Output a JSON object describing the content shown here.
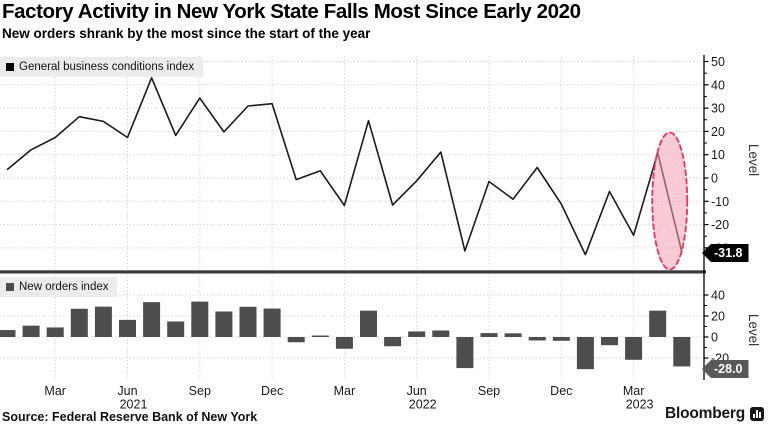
{
  "header": {
    "title": "Factory Activity in New York State Falls Most Since Early 2020",
    "subtitle": "New orders shrank by the most since the start of the year"
  },
  "chart_data": {
    "months": [
      "Jan 2021",
      "Feb 2021",
      "Mar 2021",
      "Apr 2021",
      "May 2021",
      "Jun 2021",
      "Jul 2021",
      "Aug 2021",
      "Sep 2021",
      "Oct 2021",
      "Nov 2021",
      "Dec 2021",
      "Jan 2022",
      "Feb 2022",
      "Mar 2022",
      "Apr 2022",
      "May 2022",
      "Jun 2022",
      "Jul 2022",
      "Aug 2022",
      "Sep 2022",
      "Oct 2022",
      "Nov 2022",
      "Dec 2022",
      "Jan 2023",
      "Feb 2023",
      "Mar 2023",
      "Apr 2023",
      "May 2023"
    ],
    "xtick_labels": [
      {
        "label": "Mar",
        "month_index": 2
      },
      {
        "label": "Jun",
        "month_index": 5
      },
      {
        "label": "Sep",
        "month_index": 8
      },
      {
        "label": "Dec",
        "month_index": 11
      },
      {
        "label": "Mar",
        "month_index": 14
      },
      {
        "label": "Jun",
        "month_index": 17
      },
      {
        "label": "Sep",
        "month_index": 20
      },
      {
        "label": "Dec",
        "month_index": 23
      },
      {
        "label": "Mar",
        "month_index": 26
      }
    ],
    "year_labels": [
      {
        "label": "2021",
        "month_index": 5
      },
      {
        "label": "2022",
        "month_index": 17
      },
      {
        "label": "2023",
        "month_index": 26
      }
    ],
    "charts": [
      {
        "type": "line",
        "legend": "General business conditions index",
        "ylabel": "Level",
        "series_color": "#1b1b1b",
        "legend_swatch_color": "#000000",
        "yticks": [
          50,
          40,
          30,
          20,
          10,
          0,
          -10,
          -20,
          -30
        ],
        "ylim": [
          -36,
          52
        ],
        "values": [
          3.5,
          12.1,
          17.4,
          26.3,
          24.3,
          17.4,
          43.0,
          18.3,
          34.3,
          19.8,
          30.9,
          31.9,
          -0.7,
          3.1,
          -11.8,
          24.6,
          -11.6,
          -1.2,
          11.1,
          -31.3,
          -1.5,
          -9.1,
          4.5,
          -11.2,
          -32.9,
          -5.8,
          -24.6,
          10.8,
          -31.8
        ],
        "last_value_label": "-31.8",
        "badge_color": "#000000",
        "annotation": {
          "shape": "ellipse-highlight",
          "months": [
            "Apr 2023",
            "May 2023"
          ],
          "stroke": "#e8355f",
          "fill": "#f2a0b4"
        }
      },
      {
        "type": "bar",
        "legend": "New orders index",
        "ylabel": "Level",
        "bar_color": "#4d4d4d",
        "legend_swatch_color": "#4d4d4d",
        "yticks": [
          40,
          20,
          0,
          -20
        ],
        "ylim": [
          -34,
          48
        ],
        "values": [
          6.6,
          10.8,
          9.1,
          26.9,
          28.9,
          16.3,
          33.2,
          14.8,
          33.7,
          24.3,
          28.8,
          27.1,
          -5.0,
          1.4,
          -11.2,
          25.1,
          -8.8,
          5.3,
          6.2,
          -29.6,
          3.7,
          3.5,
          -3.3,
          -3.6,
          -30.6,
          -7.8,
          -21.7,
          25.1,
          -28.0
        ],
        "last_value_label": "-28.0",
        "badge_color": "#58595b"
      }
    ]
  },
  "footer": {
    "source": "Source: Federal Reserve Bank of New York",
    "brand": "Bloomberg"
  }
}
